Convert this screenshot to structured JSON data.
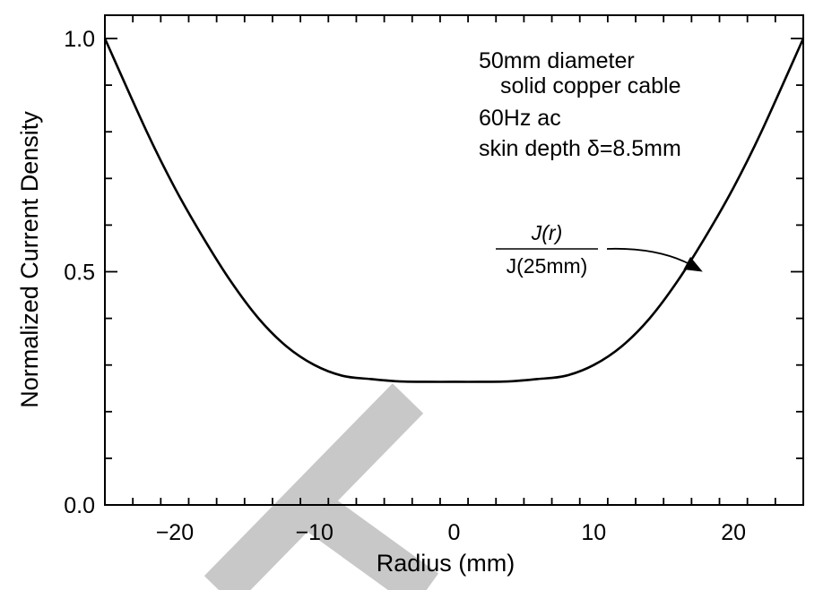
{
  "chart_data": {
    "type": "line",
    "title": "",
    "xlabel": "Radius (mm)",
    "ylabel": "Normalized Current Density",
    "xlim": [
      -25,
      25
    ],
    "ylim": [
      0,
      1.05
    ],
    "x_ticks": [
      -20,
      -10,
      0,
      10,
      20
    ],
    "x_tick_labels": [
      "−20",
      "−10",
      "0",
      "10",
      "20"
    ],
    "y_ticks": [
      0.0,
      0.5,
      1.0
    ],
    "y_tick_labels": [
      "0.0",
      "0.5",
      "1.0"
    ],
    "x_minor_step": 2,
    "y_minor_step": 0.1,
    "grid": false,
    "series": [
      {
        "color": "#000000",
        "x": [
          -25,
          -22,
          -20,
          -18,
          -16,
          -14,
          -12,
          -10,
          -8,
          -6,
          -4,
          -2,
          0,
          2,
          4,
          6,
          8,
          10,
          12,
          14,
          16,
          18,
          20,
          22,
          25
        ],
        "y": [
          1.0,
          0.8,
          0.68,
          0.575,
          0.48,
          0.4,
          0.34,
          0.3,
          0.277,
          0.27,
          0.265,
          0.264,
          0.264,
          0.264,
          0.265,
          0.27,
          0.277,
          0.3,
          0.34,
          0.4,
          0.48,
          0.575,
          0.68,
          0.8,
          1.0
        ]
      }
    ],
    "annotations": {
      "lines": [
        "50mm diameter",
        "solid copper cable",
        "60Hz ac",
        "skin depth δ=8.5mm"
      ],
      "fraction_numerator": "J(r)",
      "fraction_denominator": "J(25mm)",
      "arrow_target": {
        "x": 17.8,
        "y": 0.5
      }
    }
  }
}
